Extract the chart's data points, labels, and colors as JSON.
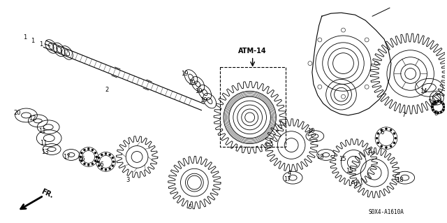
{
  "bg_color": "#ffffff",
  "fig_width": 6.4,
  "fig_height": 3.19,
  "dpi": 100,
  "atm_label": "ATM-14",
  "part_code": "S0X4-A1610A",
  "fr_label": "FR."
}
